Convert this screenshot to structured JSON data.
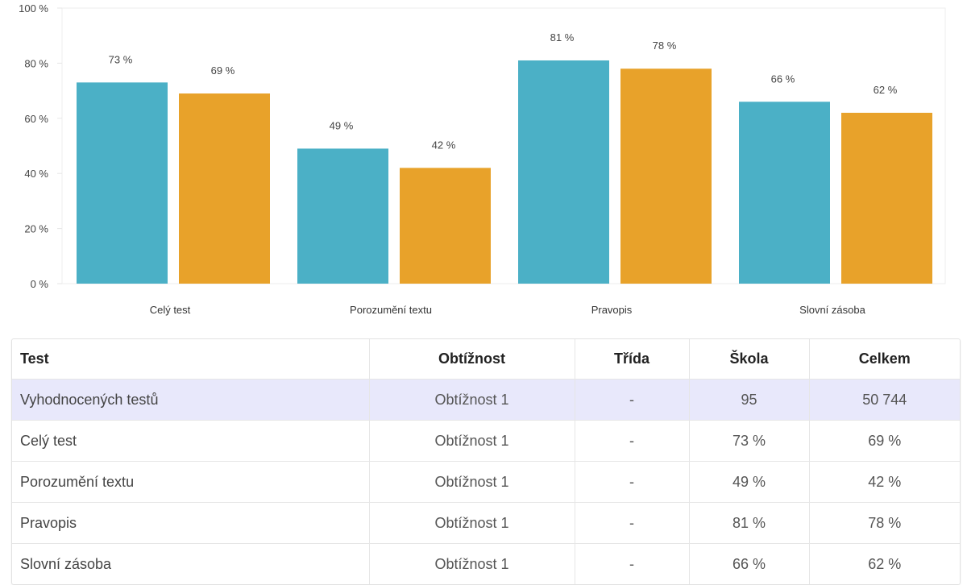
{
  "chart_data": {
    "type": "bar",
    "title": "",
    "xlabel": "",
    "ylabel": "",
    "ylim": [
      0,
      100
    ],
    "y_ticks": [
      "0 %",
      "20 %",
      "40 %",
      "60 %",
      "80 %",
      "100 %"
    ],
    "y_tick_values": [
      0,
      20,
      40,
      60,
      80,
      100
    ],
    "categories": [
      "Celý test",
      "Porozumění textu",
      "Pravopis",
      "Slovní zásoba"
    ],
    "series": [
      {
        "name": "Škola",
        "color": "#4bb0c6",
        "values": [
          73,
          49,
          81,
          66
        ],
        "labels": [
          "73 %",
          "49 %",
          "81 %",
          "66 %"
        ]
      },
      {
        "name": "Celkem",
        "color": "#e8a22a",
        "values": [
          69,
          42,
          78,
          62
        ],
        "labels": [
          "69 %",
          "42 %",
          "78 %",
          "62 %"
        ]
      }
    ],
    "grid": false,
    "legend": "none"
  },
  "table": {
    "headers": [
      "Test",
      "Obtížnost",
      "Třída",
      "Škola",
      "Celkem"
    ],
    "rows": [
      [
        "Vyhodnocených testů",
        "Obtížnost 1",
        "-",
        "95",
        "50 744"
      ],
      [
        "Celý test",
        "Obtížnost 1",
        "-",
        "73 %",
        "69 %"
      ],
      [
        "Porozumění textu",
        "Obtížnost 1",
        "-",
        "49 %",
        "42 %"
      ],
      [
        "Pravopis",
        "Obtížnost 1",
        "-",
        "81 %",
        "78 %"
      ],
      [
        "Slovní zásoba",
        "Obtížnost 1",
        "-",
        "66 %",
        "62 %"
      ]
    ],
    "highlight_color": "#e8e8fb"
  }
}
